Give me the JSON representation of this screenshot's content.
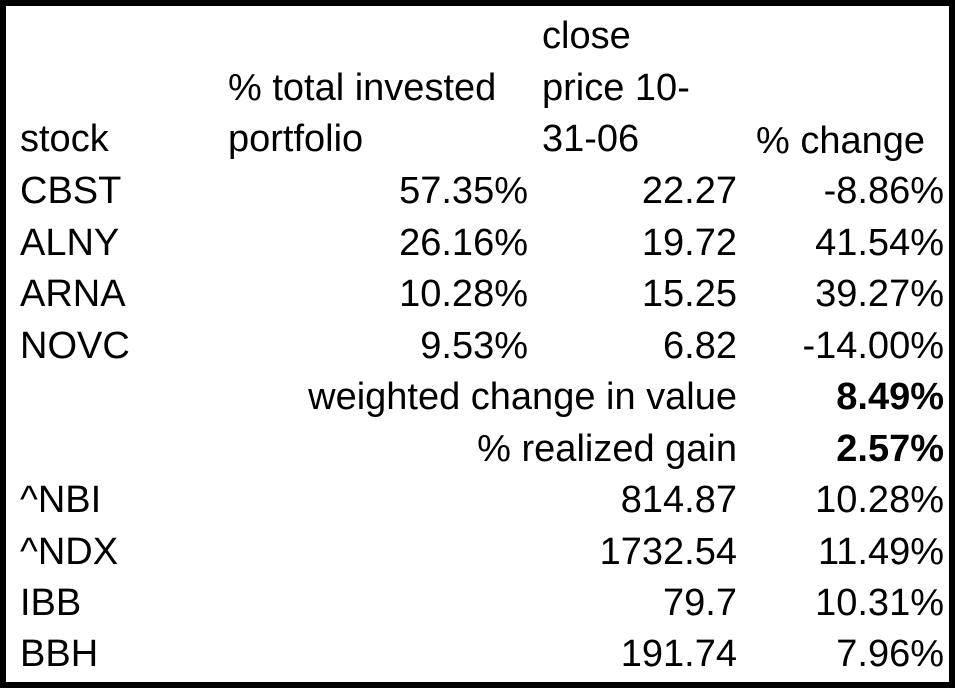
{
  "headers": {
    "stock": "stock",
    "invested_line1": "% total invested",
    "invested_line2": "portfolio",
    "close_line1": "close",
    "close_line2": "price 10-",
    "close_line3": "31-06",
    "change": "% change"
  },
  "holdings": [
    {
      "stock": "CBST",
      "pct_invested": "57.35%",
      "close": "22.27",
      "change": "-8.86%"
    },
    {
      "stock": "ALNY",
      "pct_invested": "26.16%",
      "close": "19.72",
      "change": "41.54%"
    },
    {
      "stock": "ARNA",
      "pct_invested": "10.28%",
      "close": "15.25",
      "change": "39.27%"
    },
    {
      "stock": "NOVC",
      "pct_invested": "9.53%",
      "close": "6.82",
      "change": "-14.00%"
    }
  ],
  "summary": [
    {
      "label": "weighted change in value",
      "value": "8.49%"
    },
    {
      "label": "% realized gain",
      "value": "2.57%"
    }
  ],
  "indices": [
    {
      "stock": "^NBI",
      "close": "814.87",
      "change": "10.28%"
    },
    {
      "stock": "^NDX",
      "close": "1732.54",
      "change": "11.49%"
    },
    {
      "stock": "IBB",
      "close": "79.7",
      "change": "10.31%"
    },
    {
      "stock": "BBH",
      "close": "191.74",
      "change": "7.96%"
    }
  ]
}
